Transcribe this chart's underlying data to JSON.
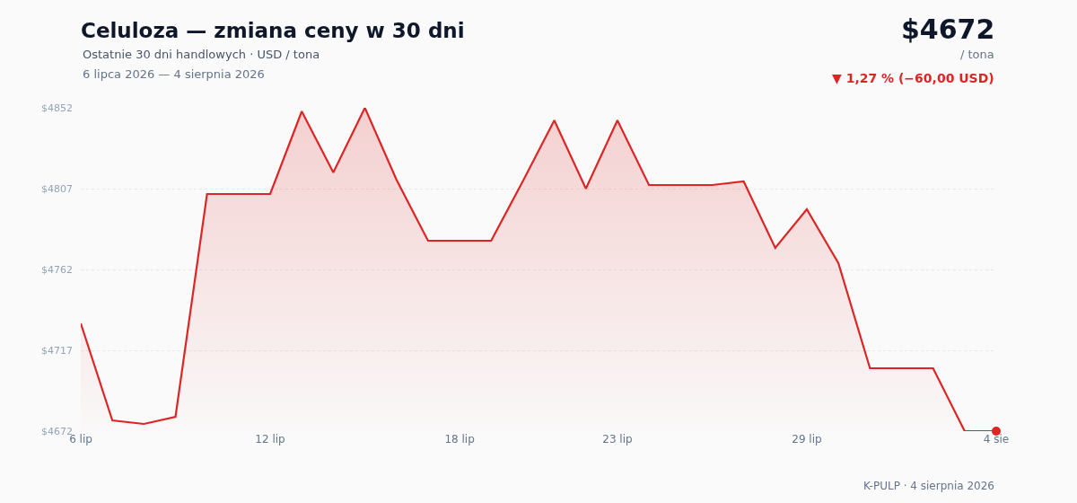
{
  "chart_data": {
    "type": "area",
    "title": "Celuloza — zmiana ceny w 30 dni",
    "subtitle": "Ostatnie 30 dni handlowych · USD / tona",
    "annotations": [
      "6 lipca 2026 — 4 sierpnia 2026",
      "$4672",
      "/ tona",
      "▼ 1,27 % (−60,00 USD)",
      "K-PULP · 4 sierpnia 2026"
    ],
    "categories": [
      "6 lip",
      null,
      null,
      null,
      null,
      null,
      "12 lip",
      null,
      null,
      null,
      null,
      null,
      "18 lip",
      null,
      null,
      null,
      null,
      "23 lip",
      null,
      null,
      null,
      null,
      null,
      "29 lip",
      null,
      null,
      null,
      null,
      null,
      "4 sie"
    ],
    "series": [
      {
        "type": "area",
        "color": "#dc2626",
        "marker": "none",
        "values": [
          4732,
          4678,
          4676,
          4680,
          4804,
          4804,
          4804,
          4850,
          4816,
          4852,
          4812,
          4778,
          4778,
          4778,
          4811,
          4845,
          4807,
          4845,
          4809,
          4809,
          4809,
          4811,
          4774,
          4795.5,
          4765.5,
          4707,
          4707,
          4707,
          4672,
          4672
        ]
      },
      {
        "type": "scatter",
        "color": "#dc2626",
        "marker": "circle",
        "x": [
          "4 sie"
        ],
        "values": [
          4672
        ]
      }
    ],
    "ylim": [
      4672,
      4852
    ],
    "yticks": [
      {
        "value": 4672,
        "label": "$4672"
      },
      {
        "value": 4717,
        "label": "$4717"
      },
      {
        "value": 4762,
        "label": "$4762"
      },
      {
        "value": 4807,
        "label": "$4807"
      },
      {
        "value": 4852,
        "label": "$4852"
      }
    ],
    "grid": "y",
    "legend": false,
    "line_style": "solid"
  }
}
